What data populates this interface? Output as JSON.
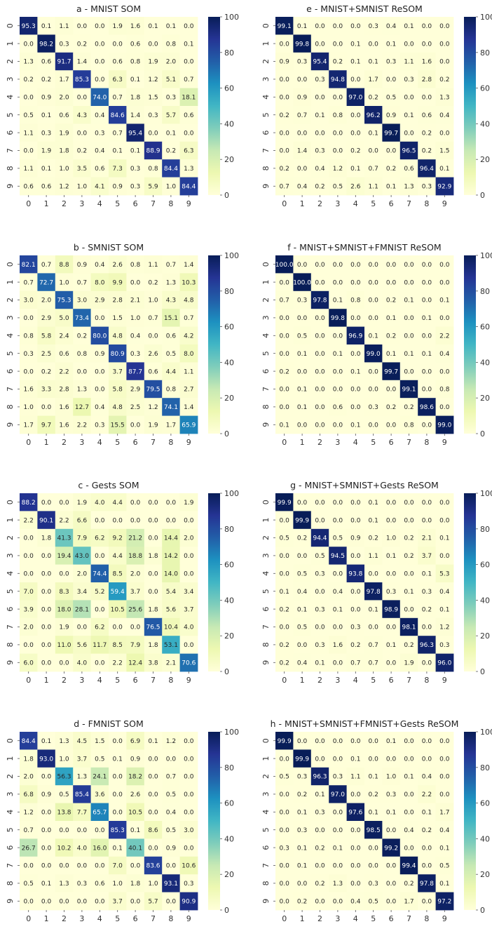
{
  "colormap": {
    "name": "YlGnBu",
    "stops": [
      "#ffffd9",
      "#edf8b1",
      "#c7e9b4",
      "#7fcdbb",
      "#41b6c4",
      "#1d91c0",
      "#225ea8",
      "#253494",
      "#081d58"
    ],
    "text_light": "#ffffff",
    "text_dark": "#262626"
  },
  "chart_data": [
    {
      "type": "heatmap",
      "title": "a - MNIST SOM",
      "x_categories": [
        "0",
        "1",
        "2",
        "3",
        "4",
        "5",
        "6",
        "7",
        "8",
        "9"
      ],
      "y_categories": [
        "0",
        "1",
        "2",
        "3",
        "4",
        "5",
        "6",
        "7",
        "8",
        "9"
      ],
      "colorbar": {
        "vmin": 0,
        "vmax": 100,
        "ticks": [
          0,
          20,
          40,
          60,
          80,
          100
        ]
      },
      "values": [
        [
          95.3,
          0.1,
          1.1,
          0.0,
          0.0,
          1.9,
          1.6,
          0.1,
          0.1,
          0.0
        ],
        [
          0.0,
          98.2,
          0.3,
          0.2,
          0.0,
          0.0,
          0.6,
          0.0,
          0.8,
          0.1
        ],
        [
          1.3,
          0.6,
          91.7,
          1.4,
          0.0,
          0.6,
          0.8,
          1.9,
          2.0,
          0.0
        ],
        [
          0.2,
          0.2,
          1.7,
          85.3,
          0.0,
          6.3,
          0.1,
          1.2,
          5.1,
          0.7
        ],
        [
          0.0,
          0.9,
          2.0,
          0.0,
          74.0,
          0.7,
          1.8,
          1.5,
          0.3,
          18.1
        ],
        [
          0.5,
          0.1,
          0.6,
          4.3,
          0.4,
          84.6,
          1.4,
          0.3,
          5.7,
          0.6
        ],
        [
          1.1,
          0.3,
          1.9,
          0.0,
          0.3,
          0.7,
          95.4,
          0.0,
          0.1,
          0.0
        ],
        [
          0.0,
          1.9,
          1.8,
          0.2,
          0.4,
          0.1,
          0.1,
          88.9,
          0.2,
          6.3
        ],
        [
          1.1,
          0.1,
          1.0,
          3.5,
          0.6,
          7.3,
          0.3,
          0.8,
          84.4,
          1.3
        ],
        [
          0.6,
          0.6,
          1.2,
          1.0,
          4.1,
          0.9,
          0.3,
          5.9,
          1.0,
          84.4
        ]
      ]
    },
    {
      "type": "heatmap",
      "title": "e - MNIST+SMNIST ReSOM",
      "x_categories": [
        "0",
        "1",
        "2",
        "3",
        "4",
        "5",
        "6",
        "7",
        "8",
        "9"
      ],
      "y_categories": [
        "0",
        "1",
        "2",
        "3",
        "4",
        "5",
        "6",
        "7",
        "8",
        "9"
      ],
      "colorbar": {
        "vmin": 0,
        "vmax": 100,
        "ticks": [
          0,
          20,
          40,
          60,
          80,
          100
        ]
      },
      "values": [
        [
          99.1,
          0.1,
          0.0,
          0.0,
          0.0,
          0.3,
          0.4,
          0.1,
          0.0,
          0.0
        ],
        [
          0.0,
          99.8,
          0.0,
          0.0,
          0.1,
          0.0,
          0.1,
          0.0,
          0.0,
          0.0
        ],
        [
          0.9,
          0.3,
          95.4,
          0.2,
          0.1,
          0.1,
          0.3,
          1.1,
          1.6,
          0.0
        ],
        [
          0.0,
          0.0,
          0.3,
          94.8,
          0.0,
          1.7,
          0.0,
          0.3,
          2.8,
          0.2
        ],
        [
          0.0,
          0.9,
          0.0,
          0.0,
          97.0,
          0.2,
          0.5,
          0.0,
          0.0,
          1.3
        ],
        [
          0.2,
          0.7,
          0.1,
          0.8,
          0.0,
          96.2,
          0.9,
          0.1,
          0.6,
          0.4
        ],
        [
          0.0,
          0.0,
          0.0,
          0.0,
          0.0,
          0.1,
          99.7,
          0.0,
          0.2,
          0.0
        ],
        [
          0.0,
          1.4,
          0.3,
          0.0,
          0.2,
          0.0,
          0.0,
          96.5,
          0.2,
          1.5
        ],
        [
          0.2,
          0.0,
          0.4,
          1.2,
          0.1,
          0.7,
          0.2,
          0.6,
          96.4,
          0.1
        ],
        [
          0.7,
          0.4,
          0.2,
          0.5,
          2.6,
          1.1,
          0.1,
          1.3,
          0.3,
          92.9
        ]
      ]
    },
    {
      "type": "heatmap",
      "title": "b - SMNIST SOM",
      "x_categories": [
        "0",
        "1",
        "2",
        "3",
        "4",
        "5",
        "6",
        "7",
        "8",
        "9"
      ],
      "y_categories": [
        "0",
        "1",
        "2",
        "3",
        "4",
        "5",
        "6",
        "7",
        "8",
        "9"
      ],
      "colorbar": {
        "vmin": 0,
        "vmax": 100,
        "ticks": [
          0,
          20,
          40,
          60,
          80,
          100
        ]
      },
      "values": [
        [
          82.1,
          0.7,
          8.8,
          0.9,
          0.4,
          2.6,
          0.8,
          1.1,
          0.7,
          1.4
        ],
        [
          0.7,
          72.7,
          1.0,
          0.7,
          8.0,
          9.9,
          0.0,
          0.2,
          1.3,
          10.3
        ],
        [
          3.0,
          2.0,
          75.3,
          3.0,
          2.9,
          2.8,
          2.1,
          1.0,
          4.3,
          4.8
        ],
        [
          0.0,
          2.9,
          5.0,
          73.4,
          0.0,
          1.5,
          1.0,
          0.7,
          15.1,
          0.7
        ],
        [
          0.8,
          5.8,
          2.4,
          0.2,
          80.0,
          4.8,
          0.4,
          0.0,
          0.6,
          4.2
        ],
        [
          0.3,
          2.5,
          0.6,
          0.8,
          0.9,
          80.9,
          0.3,
          2.6,
          0.5,
          8.0
        ],
        [
          0.0,
          0.2,
          2.2,
          0.0,
          0.0,
          3.7,
          87.7,
          0.6,
          4.4,
          1.1
        ],
        [
          1.6,
          3.3,
          2.8,
          1.3,
          0.0,
          5.8,
          2.9,
          79.5,
          0.8,
          2.7
        ],
        [
          1.0,
          0.0,
          1.6,
          12.7,
          0.4,
          4.8,
          2.5,
          1.2,
          74.1,
          1.4
        ],
        [
          1.7,
          9.7,
          1.6,
          2.2,
          0.3,
          15.5,
          0.0,
          1.9,
          1.7,
          65.9
        ]
      ]
    },
    {
      "type": "heatmap",
      "title": "f - MNIST+SMNIST+FMNIST ReSOM",
      "x_categories": [
        "0",
        "1",
        "2",
        "3",
        "4",
        "5",
        "6",
        "7",
        "8",
        "9"
      ],
      "y_categories": [
        "0",
        "1",
        "2",
        "3",
        "4",
        "5",
        "6",
        "7",
        "8",
        "9"
      ],
      "colorbar": {
        "vmin": 0,
        "vmax": 100,
        "ticks": [
          0,
          20,
          40,
          60,
          80,
          100
        ]
      },
      "values": [
        [
          100.0,
          0.0,
          0.0,
          0.0,
          0.0,
          0.0,
          0.0,
          0.0,
          0.0,
          0.0
        ],
        [
          0.0,
          100.0,
          0.0,
          0.0,
          0.0,
          0.0,
          0.0,
          0.0,
          0.0,
          0.0
        ],
        [
          0.7,
          0.3,
          97.8,
          0.1,
          0.8,
          0.0,
          0.2,
          0.1,
          0.0,
          0.1
        ],
        [
          0.0,
          0.0,
          0.0,
          99.8,
          0.0,
          0.0,
          0.1,
          0.0,
          0.1,
          0.0
        ],
        [
          0.0,
          0.5,
          0.0,
          0.0,
          96.9,
          0.1,
          0.2,
          0.0,
          0.0,
          2.2
        ],
        [
          0.0,
          0.1,
          0.0,
          0.1,
          0.0,
          99.0,
          0.1,
          0.1,
          0.1,
          0.4
        ],
        [
          0.2,
          0.0,
          0.0,
          0.0,
          0.1,
          0.0,
          99.7,
          0.0,
          0.0,
          0.0
        ],
        [
          0.0,
          0.1,
          0.0,
          0.0,
          0.0,
          0.0,
          0.0,
          99.1,
          0.0,
          0.8
        ],
        [
          0.0,
          0.1,
          0.0,
          0.6,
          0.0,
          0.3,
          0.2,
          0.2,
          98.6,
          0.0
        ],
        [
          0.1,
          0.0,
          0.0,
          0.0,
          0.1,
          0.0,
          0.0,
          0.8,
          0.0,
          99.0
        ]
      ]
    },
    {
      "type": "heatmap",
      "title": "c - Gests SOM",
      "x_categories": [
        "0",
        "1",
        "2",
        "3",
        "4",
        "5",
        "6",
        "7",
        "8",
        "9"
      ],
      "y_categories": [
        "0",
        "1",
        "2",
        "3",
        "4",
        "5",
        "6",
        "7",
        "8",
        "9"
      ],
      "colorbar": {
        "vmin": 0,
        "vmax": 100,
        "ticks": [
          0,
          20,
          40,
          60,
          80,
          100
        ]
      },
      "values": [
        [
          88.2,
          0.0,
          0.0,
          1.9,
          4.0,
          4.4,
          0.0,
          0.0,
          0.0,
          1.9
        ],
        [
          2.2,
          90.1,
          2.2,
          6.6,
          0.0,
          0.0,
          0.0,
          0.0,
          0.0,
          0.0
        ],
        [
          0.0,
          1.8,
          41.3,
          7.9,
          6.2,
          9.2,
          21.2,
          0.0,
          14.4,
          2.0
        ],
        [
          0.0,
          0.0,
          19.4,
          43.0,
          0.0,
          4.4,
          18.8,
          1.8,
          14.2,
          0.0
        ],
        [
          0.0,
          0.0,
          0.0,
          2.0,
          74.4,
          8.5,
          2.0,
          0.0,
          14.0,
          0.0
        ],
        [
          7.0,
          0.0,
          8.3,
          3.4,
          5.2,
          59.4,
          3.7,
          0.0,
          5.4,
          3.4
        ],
        [
          3.9,
          0.0,
          18.0,
          28.1,
          0.0,
          10.5,
          25.6,
          1.8,
          5.6,
          3.7
        ],
        [
          2.0,
          0.0,
          1.9,
          0.0,
          6.2,
          0.0,
          0.0,
          76.5,
          10.4,
          4.0
        ],
        [
          0.0,
          0.0,
          11.0,
          5.6,
          11.7,
          8.5,
          7.9,
          1.8,
          53.1,
          0.0
        ],
        [
          6.0,
          0.0,
          0.0,
          4.0,
          0.0,
          2.2,
          12.4,
          3.8,
          2.1,
          70.6
        ]
      ]
    },
    {
      "type": "heatmap",
      "title": "g - MNIST+SMNIST+Gests ReSOM",
      "x_categories": [
        "0",
        "1",
        "2",
        "3",
        "4",
        "5",
        "6",
        "7",
        "8",
        "9"
      ],
      "y_categories": [
        "0",
        "1",
        "2",
        "3",
        "4",
        "5",
        "6",
        "7",
        "8",
        "9"
      ],
      "colorbar": {
        "vmin": 0,
        "vmax": 100,
        "ticks": [
          0,
          20,
          40,
          60,
          80,
          100
        ]
      },
      "values": [
        [
          99.9,
          0.0,
          0.0,
          0.0,
          0.0,
          0.1,
          0.0,
          0.0,
          0.0,
          0.0
        ],
        [
          0.0,
          99.9,
          0.0,
          0.0,
          0.0,
          0.1,
          0.0,
          0.0,
          0.0,
          0.0
        ],
        [
          0.5,
          0.2,
          94.4,
          0.5,
          0.9,
          0.2,
          1.0,
          0.2,
          2.1,
          0.1
        ],
        [
          0.0,
          0.0,
          0.5,
          94.5,
          0.0,
          1.1,
          0.1,
          0.2,
          3.7,
          0.0
        ],
        [
          0.0,
          0.5,
          0.3,
          0.0,
          93.8,
          0.0,
          0.0,
          0.0,
          0.1,
          5.3
        ],
        [
          0.1,
          0.4,
          0.0,
          0.4,
          0.0,
          97.8,
          0.3,
          0.1,
          0.3,
          0.4
        ],
        [
          0.2,
          0.1,
          0.3,
          0.1,
          0.0,
          0.1,
          98.9,
          0.0,
          0.2,
          0.1
        ],
        [
          0.0,
          0.5,
          0.0,
          0.0,
          0.3,
          0.0,
          0.0,
          98.1,
          0.0,
          1.2
        ],
        [
          0.2,
          0.0,
          0.3,
          1.6,
          0.2,
          0.7,
          0.1,
          0.2,
          96.3,
          0.3
        ],
        [
          0.2,
          0.4,
          0.1,
          0.0,
          0.7,
          0.7,
          0.0,
          1.9,
          0.0,
          96.0
        ]
      ]
    },
    {
      "type": "heatmap",
      "title": "d - FMNIST SOM",
      "x_categories": [
        "0",
        "1",
        "2",
        "3",
        "4",
        "5",
        "6",
        "7",
        "8",
        "9"
      ],
      "y_categories": [
        "0",
        "1",
        "2",
        "3",
        "4",
        "5",
        "6",
        "7",
        "8",
        "9"
      ],
      "colorbar": {
        "vmin": 0,
        "vmax": 100,
        "ticks": [
          0,
          20,
          40,
          60,
          80,
          100
        ]
      },
      "values": [
        [
          84.4,
          0.1,
          1.3,
          4.5,
          1.5,
          0.0,
          6.9,
          0.1,
          1.2,
          0.0
        ],
        [
          1.8,
          93.0,
          1.0,
          3.7,
          0.5,
          0.1,
          0.9,
          0.0,
          0.0,
          0.0
        ],
        [
          2.0,
          0.0,
          56.3,
          1.3,
          24.1,
          0.0,
          18.2,
          0.0,
          0.7,
          0.0
        ],
        [
          6.8,
          0.9,
          0.5,
          85.4,
          3.6,
          0.0,
          2.6,
          0.0,
          0.5,
          0.0
        ],
        [
          1.2,
          0.0,
          13.8,
          7.7,
          65.7,
          0.0,
          10.5,
          0.0,
          0.4,
          0.0
        ],
        [
          0.7,
          0.0,
          0.0,
          0.0,
          0.0,
          85.3,
          0.1,
          8.6,
          0.5,
          3.0
        ],
        [
          26.7,
          0.0,
          10.2,
          4.0,
          16.0,
          0.1,
          40.1,
          0.0,
          0.9,
          0.0
        ],
        [
          0.0,
          0.0,
          0.0,
          0.0,
          0.0,
          7.0,
          0.0,
          83.6,
          0.0,
          10.6
        ],
        [
          0.5,
          0.1,
          1.3,
          0.3,
          0.6,
          1.0,
          1.8,
          1.0,
          93.1,
          0.3
        ],
        [
          0.0,
          0.0,
          0.0,
          0.0,
          0.0,
          3.7,
          0.0,
          5.7,
          0.0,
          90.9
        ]
      ]
    },
    {
      "type": "heatmap",
      "title": "h - MNIST+SMNIST+FMNIST+Gests ReSOM",
      "x_categories": [
        "0",
        "1",
        "2",
        "3",
        "4",
        "5",
        "6",
        "7",
        "8",
        "9"
      ],
      "y_categories": [
        "0",
        "1",
        "2",
        "3",
        "4",
        "5",
        "6",
        "7",
        "8",
        "9"
      ],
      "colorbar": {
        "vmin": 0,
        "vmax": 100,
        "ticks": [
          0,
          20,
          40,
          60,
          80,
          100
        ]
      },
      "values": [
        [
          99.9,
          0.0,
          0.0,
          0.0,
          0.0,
          0.0,
          0.1,
          0.0,
          0.0,
          0.0
        ],
        [
          0.0,
          99.9,
          0.0,
          0.0,
          0.1,
          0.0,
          0.0,
          0.0,
          0.0,
          0.0
        ],
        [
          0.5,
          0.3,
          96.3,
          0.3,
          1.1,
          0.1,
          1.0,
          0.1,
          0.4,
          0.0
        ],
        [
          0.0,
          0.2,
          0.1,
          97.0,
          0.0,
          0.2,
          0.3,
          0.0,
          2.2,
          0.0
        ],
        [
          0.0,
          0.1,
          0.3,
          0.0,
          97.6,
          0.1,
          0.1,
          0.0,
          0.1,
          1.7
        ],
        [
          0.0,
          0.3,
          0.0,
          0.0,
          0.0,
          98.5,
          0.0,
          0.4,
          0.2,
          0.4
        ],
        [
          0.3,
          0.1,
          0.2,
          0.1,
          0.0,
          0.0,
          99.2,
          0.0,
          0.0,
          0.1
        ],
        [
          0.0,
          0.1,
          0.0,
          0.0,
          0.0,
          0.0,
          0.0,
          99.4,
          0.0,
          0.5
        ],
        [
          0.0,
          0.0,
          0.2,
          1.3,
          0.0,
          0.3,
          0.0,
          0.2,
          97.8,
          0.1
        ],
        [
          0.0,
          0.2,
          0.0,
          0.0,
          0.4,
          0.5,
          0.0,
          1.7,
          0.0,
          97.2
        ]
      ]
    }
  ]
}
